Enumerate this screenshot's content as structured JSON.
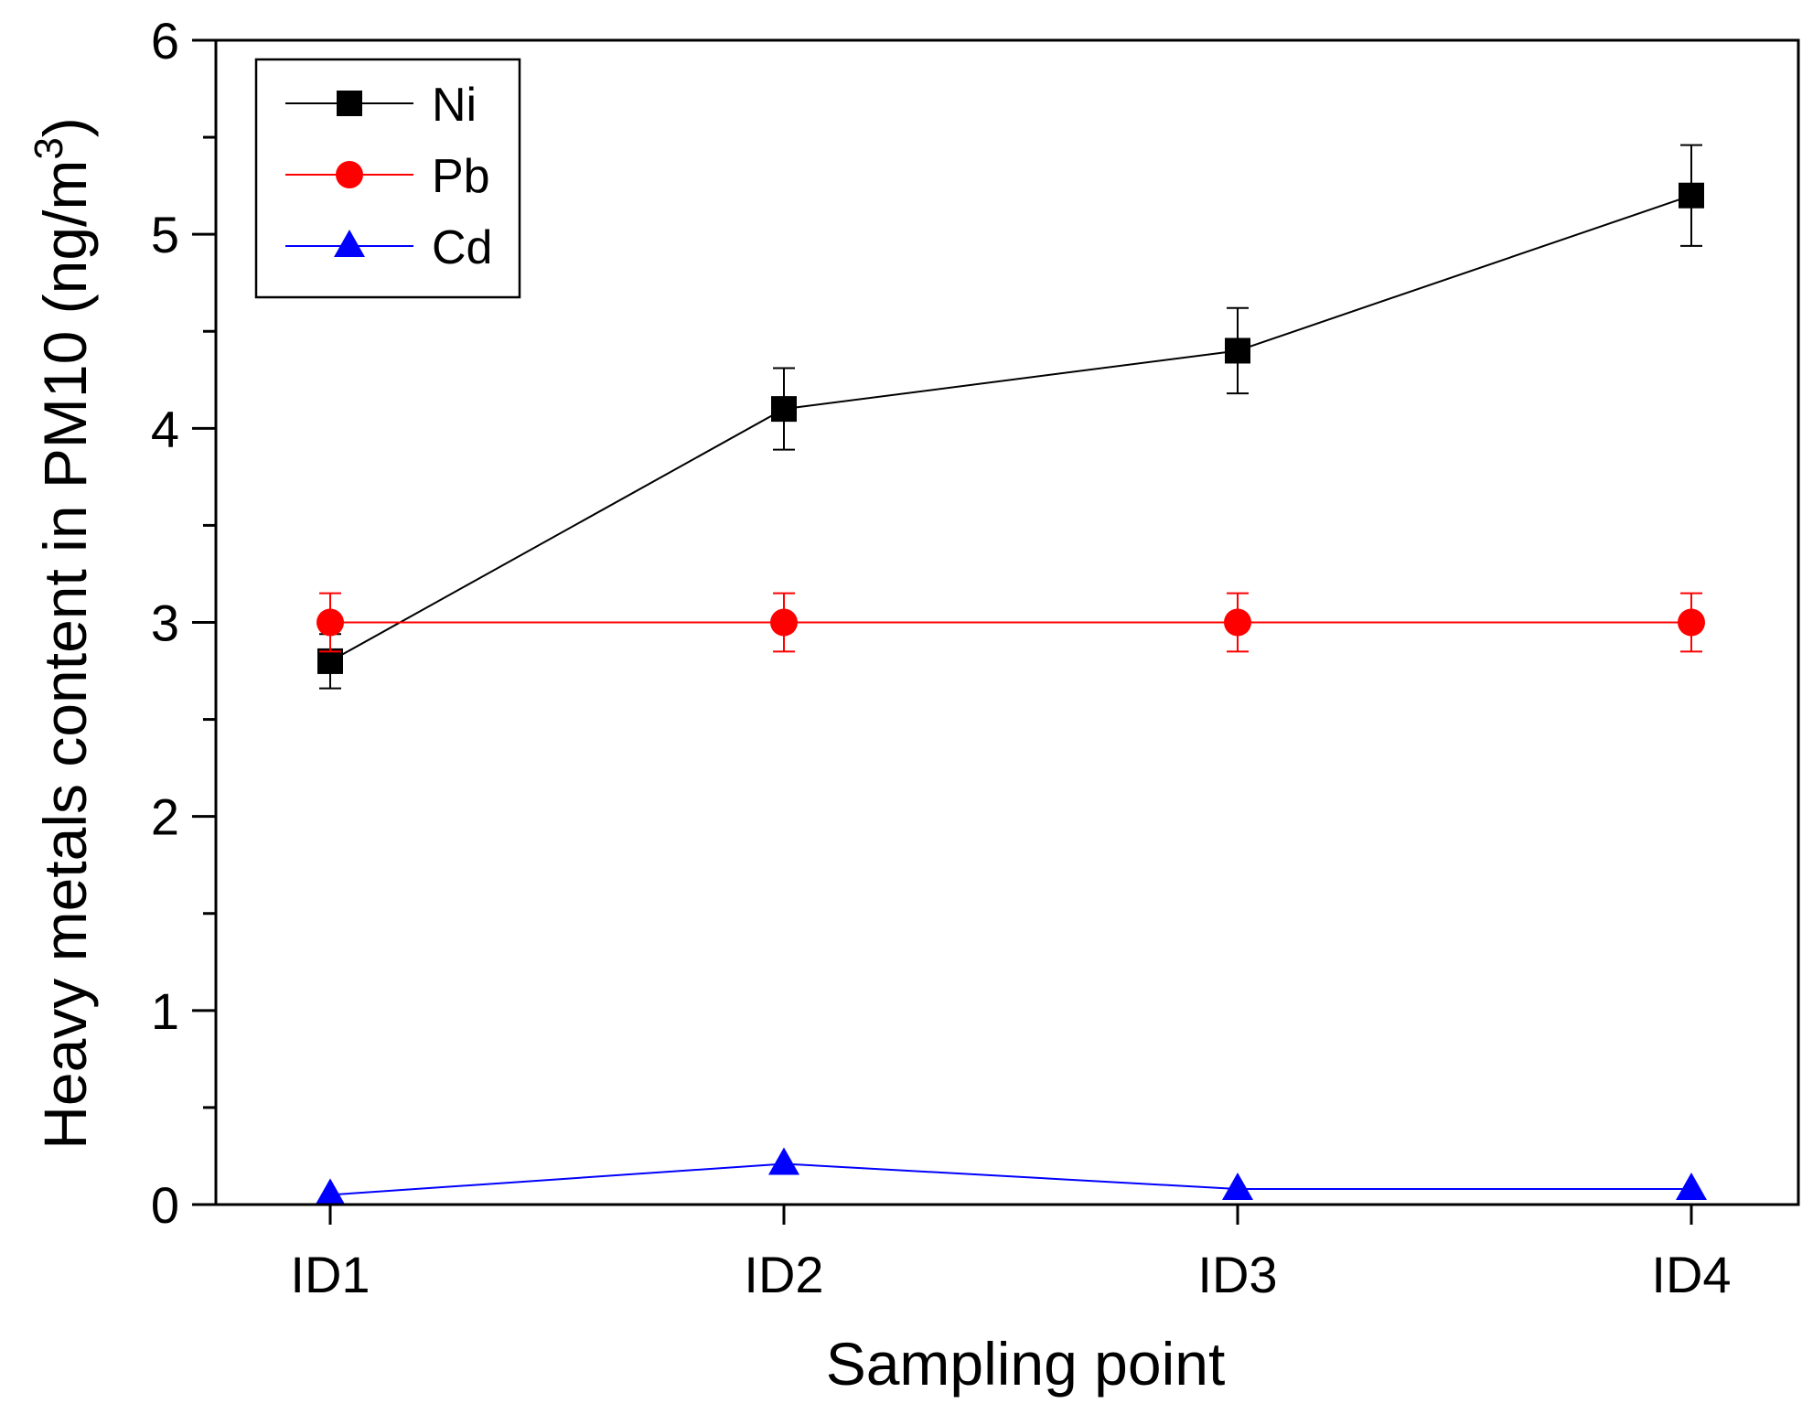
{
  "chart_data": {
    "type": "line",
    "title": "",
    "xlabel": "Sampling point",
    "ylabel": "Heavy metals content in PM10 (ng/m",
    "ylabel_superscript": "3",
    "ylabel_close": ")",
    "categories": [
      "ID1",
      "ID2",
      "ID3",
      "ID4"
    ],
    "ylim": [
      0,
      6
    ],
    "yticks": [
      "0",
      "1",
      "2",
      "3",
      "4",
      "5",
      "6"
    ],
    "legend_position": "top-left",
    "grid": false,
    "series": [
      {
        "name": "Ni",
        "color": "#000000",
        "marker": "square",
        "values": [
          2.8,
          4.1,
          4.4,
          5.2
        ],
        "errors": [
          0.14,
          0.21,
          0.22,
          0.26
        ]
      },
      {
        "name": "Pb",
        "color": "#ff0000",
        "marker": "circle",
        "values": [
          3.0,
          3.0,
          3.0,
          3.0
        ],
        "errors": [
          0.15,
          0.15,
          0.15,
          0.15
        ]
      },
      {
        "name": "Cd",
        "color": "#0000ff",
        "marker": "triangle",
        "values": [
          0.05,
          0.21,
          0.08,
          0.08
        ],
        "errors": [
          0.0,
          0.0,
          0.0,
          0.0
        ]
      }
    ]
  }
}
